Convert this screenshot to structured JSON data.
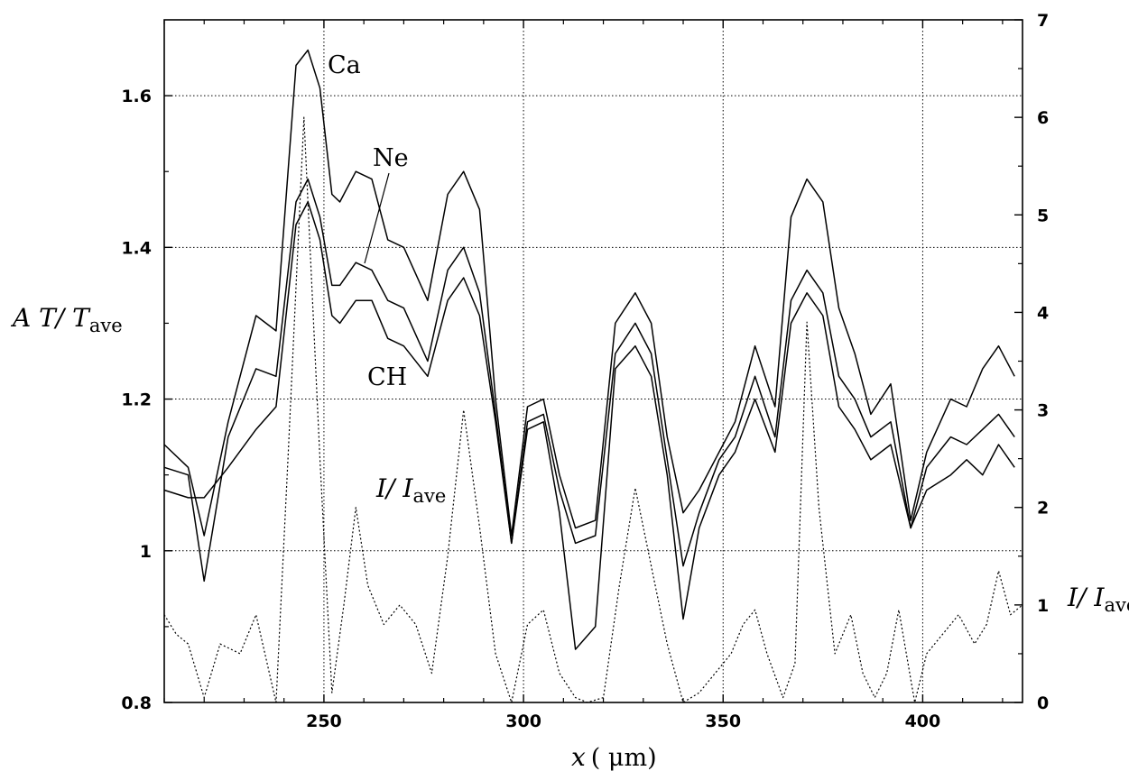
{
  "chart_data": {
    "type": "line",
    "xlabel": {
      "main": "x",
      "paren": "( μm)"
    },
    "ylabel_left": {
      "main": "A  T/ T",
      "sub": "ave"
    },
    "ylabel_right": {
      "main": "I/ I",
      "sub": "ave"
    },
    "xlim": [
      210,
      425
    ],
    "ylim_left": [
      0.8,
      1.7
    ],
    "ylim_right": [
      0,
      7
    ],
    "x_ticks": [
      250,
      300,
      350,
      400
    ],
    "x_tick_labels": [
      "250",
      "300",
      "350",
      "400"
    ],
    "y_left_ticks": [
      0.8,
      1,
      1.2,
      1.4,
      1.6
    ],
    "y_left_tick_labels": [
      "0.8",
      "1",
      "1.2",
      "1.4",
      "1.6"
    ],
    "y_right_ticks": [
      0,
      1,
      2,
      3,
      4,
      5,
      6,
      7
    ],
    "y_right_tick_labels": [
      "0",
      "1",
      "2",
      "3",
      "4",
      "5",
      "6",
      "7"
    ],
    "grid": true,
    "annotations": {
      "ca": "Ca",
      "ne": "Ne",
      "ch": "CH",
      "intensity": {
        "main": "I/ I",
        "sub": "ave"
      }
    },
    "series": [
      {
        "axis": "left",
        "style": "solid",
        "x": [
          210,
          216,
          220,
          226,
          233,
          238,
          243,
          246,
          249,
          252,
          254,
          258,
          262,
          266,
          270,
          276,
          281,
          285,
          289,
          293,
          297,
          301,
          305,
          309,
          313,
          318,
          323,
          328,
          332,
          336,
          340,
          344,
          349,
          353,
          358,
          363,
          367,
          371,
          375,
          379,
          383,
          387,
          392,
          397,
          401,
          407,
          411,
          415,
          419,
          423
        ],
        "y": [
          1.14,
          1.11,
          1.02,
          1.17,
          1.31,
          1.29,
          1.64,
          1.66,
          1.61,
          1.47,
          1.46,
          1.5,
          1.49,
          1.41,
          1.4,
          1.33,
          1.47,
          1.5,
          1.45,
          1.2,
          1.02,
          1.19,
          1.2,
          1.1,
          1.03,
          1.04,
          1.3,
          1.34,
          1.3,
          1.15,
          1.05,
          1.08,
          1.13,
          1.17,
          1.27,
          1.19,
          1.44,
          1.49,
          1.46,
          1.32,
          1.26,
          1.18,
          1.22,
          1.04,
          1.13,
          1.2,
          1.19,
          1.24,
          1.27,
          1.23
        ]
      },
      {
        "axis": "left",
        "style": "solid",
        "x": [
          210,
          216,
          220,
          226,
          233,
          238,
          243,
          246,
          249,
          252,
          254,
          258,
          262,
          266,
          270,
          276,
          281,
          285,
          289,
          293,
          297,
          301,
          305,
          309,
          313,
          318,
          323,
          328,
          332,
          336,
          340,
          344,
          349,
          353,
          358,
          363,
          367,
          371,
          375,
          379,
          383,
          387,
          392,
          397,
          401,
          407,
          411,
          415,
          419,
          423
        ],
        "y": [
          1.11,
          1.1,
          0.96,
          1.15,
          1.24,
          1.23,
          1.46,
          1.49,
          1.44,
          1.35,
          1.35,
          1.38,
          1.37,
          1.33,
          1.32,
          1.25,
          1.37,
          1.4,
          1.34,
          1.18,
          1.01,
          1.17,
          1.18,
          1.08,
          1.01,
          1.02,
          1.26,
          1.3,
          1.26,
          1.12,
          0.98,
          1.05,
          1.12,
          1.15,
          1.23,
          1.15,
          1.33,
          1.37,
          1.34,
          1.23,
          1.2,
          1.15,
          1.17,
          1.03,
          1.11,
          1.15,
          1.14,
          1.16,
          1.18,
          1.15
        ]
      },
      {
        "axis": "left",
        "style": "solid",
        "x": [
          210,
          216,
          220,
          226,
          233,
          238,
          243,
          246,
          249,
          252,
          254,
          258,
          262,
          266,
          270,
          276,
          281,
          285,
          289,
          293,
          297,
          301,
          305,
          309,
          313,
          318,
          323,
          328,
          332,
          336,
          340,
          344,
          349,
          353,
          358,
          363,
          367,
          371,
          375,
          379,
          383,
          387,
          392,
          397,
          401,
          407,
          411,
          415,
          419,
          423
        ],
        "y": [
          1.08,
          1.07,
          1.07,
          1.11,
          1.16,
          1.19,
          1.43,
          1.46,
          1.41,
          1.31,
          1.3,
          1.33,
          1.33,
          1.28,
          1.27,
          1.23,
          1.33,
          1.36,
          1.31,
          1.17,
          1.01,
          1.16,
          1.17,
          1.05,
          0.87,
          0.9,
          1.24,
          1.27,
          1.23,
          1.1,
          0.91,
          1.03,
          1.1,
          1.13,
          1.2,
          1.13,
          1.3,
          1.34,
          1.31,
          1.19,
          1.16,
          1.12,
          1.14,
          1.03,
          1.08,
          1.1,
          1.12,
          1.1,
          1.14,
          1.11
        ]
      },
      {
        "axis": "right",
        "style": "dotted",
        "x": [
          210,
          213,
          216,
          220,
          224,
          229,
          233,
          238,
          241,
          245,
          249,
          252,
          255,
          258,
          261,
          265,
          269,
          273,
          277,
          281,
          285,
          289,
          293,
          297,
          301,
          305,
          309,
          313,
          316,
          320,
          324,
          328,
          332,
          336,
          340,
          344,
          348,
          352,
          355,
          358,
          361,
          365,
          368,
          371,
          374,
          378,
          382,
          385,
          388,
          391,
          394,
          398,
          401,
          405,
          409,
          413,
          416,
          419,
          422,
          425
        ],
        "y": [
          0.9,
          0.7,
          0.6,
          0.05,
          0.6,
          0.5,
          0.9,
          0.0,
          2.5,
          6.0,
          2.5,
          0.1,
          1.0,
          2.0,
          1.2,
          0.8,
          1.0,
          0.8,
          0.3,
          1.5,
          3.0,
          1.8,
          0.5,
          0.0,
          0.8,
          0.95,
          0.3,
          0.05,
          0.0,
          0.05,
          1.2,
          2.2,
          1.4,
          0.6,
          0.0,
          0.1,
          0.3,
          0.5,
          0.8,
          0.95,
          0.5,
          0.05,
          0.4,
          3.9,
          2.0,
          0.5,
          0.9,
          0.3,
          0.05,
          0.3,
          0.95,
          0.0,
          0.5,
          0.7,
          0.9,
          0.6,
          0.8,
          1.35,
          0.9,
          1.0
        ]
      }
    ]
  }
}
